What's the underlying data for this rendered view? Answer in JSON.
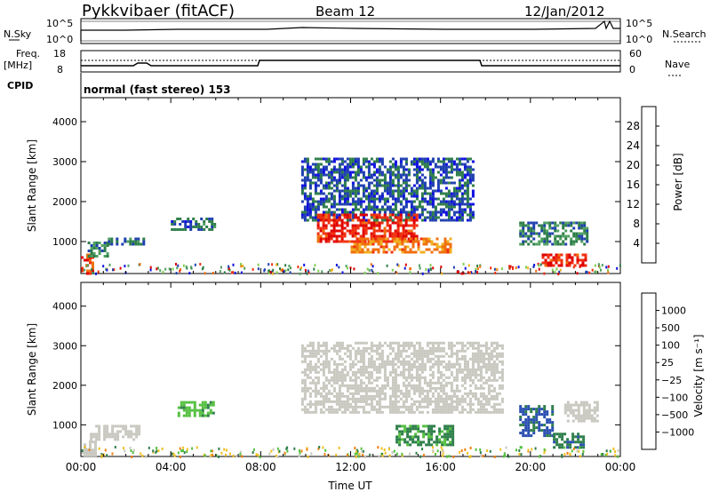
{
  "header": {
    "station": "Pykkvibaer (fitACF)",
    "beam": "Beam 12",
    "date": "12/Jan/2012"
  },
  "side_labels": {
    "nsky": "N.Sky",
    "nsearch": "N.Search",
    "freq_top": "Freq.",
    "freq_unit": "[MHz]",
    "nave": "Nave",
    "cpid": "CPID",
    "cpid_value": "normal (fast stereo) 153",
    "noise_tick_top": "10^5",
    "noise_tick_bottom": "10^0",
    "freq_tick_top": "18",
    "freq_tick_bottom": "8",
    "nave_tick_top": "60",
    "nave_tick_bottom": "0"
  },
  "colors": {
    "power_scale": [
      "#1010e0",
      "#2040b0",
      "#2e7e4a",
      "#4fa060",
      "#7fcf50",
      "#f0b020",
      "#f07010",
      "#f03010",
      "#e00000"
    ],
    "velocity_scale": [
      "#1010c0",
      "#2a4fb0",
      "#2e7e4a",
      "#55c040",
      "#c8c8c0",
      "#f0c020",
      "#f08010",
      "#f03010",
      "#e00000"
    ],
    "ground_scatter": "#c8c8c0"
  },
  "chart_data": [
    {
      "type": "heatmap",
      "ylabel": "Slant Range [km]",
      "xlabel": "",
      "ylim": [
        200,
        4600
      ],
      "xlim": [
        0,
        24
      ],
      "yticks": [
        1000,
        2000,
        3000,
        4000
      ],
      "colorbar": {
        "label": "Power [dB]",
        "ticks": [
          "4",
          "8",
          "12",
          "16",
          "20",
          "24",
          "28"
        ],
        "range": [
          0,
          32
        ]
      },
      "regions": [
        {
          "t0": 0.0,
          "t1": 0.5,
          "r0": 200,
          "r1": 700,
          "v": 26
        },
        {
          "t0": 0.3,
          "t1": 1.2,
          "r0": 600,
          "r1": 1000,
          "v": 10
        },
        {
          "t0": 1.2,
          "t1": 2.8,
          "r0": 900,
          "r1": 1100,
          "v": 8
        },
        {
          "t0": 4.0,
          "t1": 6.0,
          "r0": 1300,
          "r1": 1600,
          "v": 7
        },
        {
          "t0": 9.8,
          "t1": 17.5,
          "r0": 1500,
          "r1": 3100,
          "v": 6
        },
        {
          "t0": 10.5,
          "t1": 15.0,
          "r0": 1000,
          "r1": 1700,
          "v": 28
        },
        {
          "t0": 12.0,
          "t1": 16.5,
          "r0": 700,
          "r1": 1100,
          "v": 22
        },
        {
          "t0": 19.5,
          "t1": 22.5,
          "r0": 900,
          "r1": 1500,
          "v": 9
        },
        {
          "t0": 20.5,
          "t1": 22.5,
          "r0": 400,
          "r1": 700,
          "v": 28
        }
      ]
    },
    {
      "type": "heatmap",
      "ylabel": "Slant Range [km]",
      "xlabel": "Time UT",
      "ylim": [
        200,
        4600
      ],
      "xlim": [
        0,
        24
      ],
      "yticks": [
        1000,
        2000,
        3000,
        4000
      ],
      "xticks": [
        "00:00",
        "04:00",
        "08:00",
        "12:00",
        "16:00",
        "20:00",
        "00:00"
      ],
      "colorbar": {
        "label": "Velocity [m s⁻¹]",
        "ticks": [
          "1000",
          "500",
          "100",
          "25",
          "−25",
          "−100",
          "−500",
          "−1000"
        ]
      },
      "regions": [
        {
          "t0": 0.0,
          "t1": 0.6,
          "r0": 200,
          "r1": 600,
          "v": 0
        },
        {
          "t0": 0.4,
          "t1": 2.6,
          "r0": 600,
          "r1": 1000,
          "v": 0
        },
        {
          "t0": 4.3,
          "t1": 5.9,
          "r0": 1200,
          "r1": 1600,
          "v": 80
        },
        {
          "t0": 9.8,
          "t1": 18.8,
          "r0": 1300,
          "r1": 3100,
          "v": 0
        },
        {
          "t0": 14.0,
          "t1": 16.5,
          "r0": 500,
          "r1": 1000,
          "v": 120
        },
        {
          "t0": 19.5,
          "t1": 21.0,
          "r0": 700,
          "r1": 1500,
          "v": 600
        },
        {
          "t0": 21.0,
          "t1": 22.4,
          "r0": 400,
          "r1": 800,
          "v": 400
        },
        {
          "t0": 21.5,
          "t1": 23.0,
          "r0": 1100,
          "r1": 1600,
          "v": 0
        }
      ]
    }
  ]
}
